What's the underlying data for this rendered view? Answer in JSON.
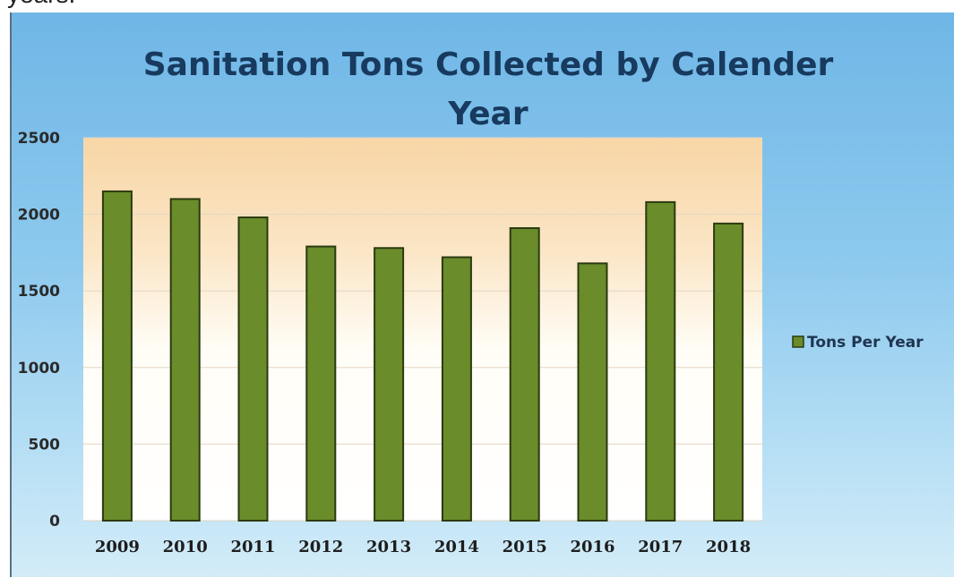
{
  "page": {
    "top_text": "years."
  },
  "chart_data": {
    "type": "bar",
    "title": "Sanitation Tons Collected by Calender Year",
    "title_lines": [
      "Sanitation Tons Collected by Calender",
      "Year"
    ],
    "categories": [
      "2009",
      "2010",
      "2011",
      "2012",
      "2013",
      "2014",
      "2015",
      "2016",
      "2017",
      "2018"
    ],
    "series": [
      {
        "name": "Tons Per Year",
        "values": [
          2150,
          2100,
          1980,
          1790,
          1780,
          1720,
          1910,
          1680,
          2080,
          1940
        ]
      }
    ],
    "ylim": [
      0,
      2500
    ],
    "yticks": [
      "0",
      "500",
      "1000",
      "1500",
      "2000",
      "2500"
    ],
    "grid": true,
    "legend_position": "right",
    "colors": {
      "bar": "#6a8c2a",
      "bar_border": "#2b3a10",
      "legend_swatch": "#6a8c2a"
    }
  }
}
